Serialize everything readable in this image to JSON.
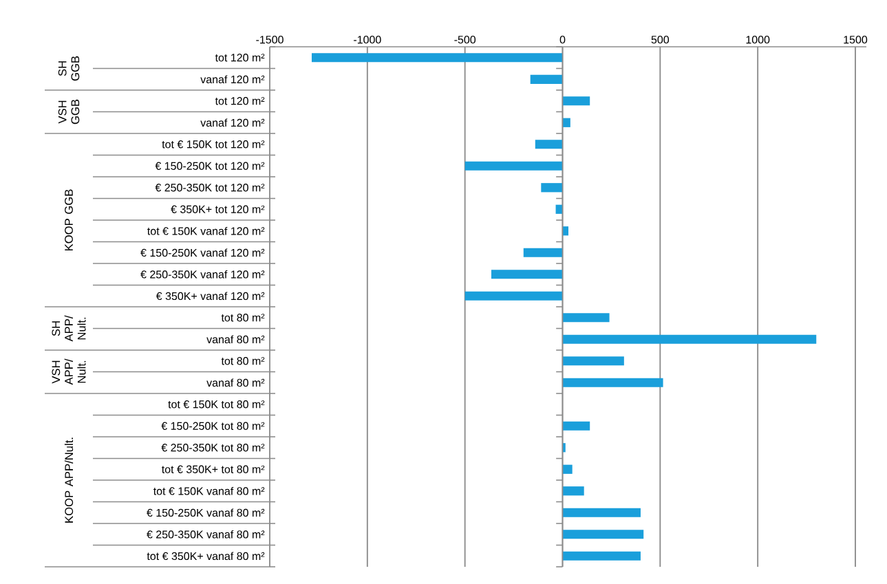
{
  "chart_data": {
    "type": "bar",
    "orientation": "horizontal",
    "categories": [
      "tot 120 m²",
      "vanaf 120 m²",
      "tot 120 m²",
      "vanaf 120 m²",
      "tot € 150K tot 120 m²",
      "€ 150-250K tot 120 m²",
      "€ 250-350K tot 120 m²",
      "€ 350K+ tot 120 m²",
      "tot € 150K vanaf 120 m²",
      "€ 150-250K vanaf 120 m²",
      "€ 250-350K vanaf 120 m²",
      "€ 350K+ vanaf 120 m²",
      "tot 80 m²",
      "vanaf 80 m²",
      "tot 80 m²",
      "vanaf 80 m²",
      "tot € 150K tot 80 m²",
      "€ 150-250K tot 80 m²",
      "€ 250-350K tot 80 m²",
      "tot € 350K+ tot 80 m²",
      "tot € 150K vanaf 80 m²",
      "€ 150-250K vanaf 80 m²",
      "€ 250-350K vanaf 80 m²",
      "tot € 350K+ vanaf 80 m²"
    ],
    "values": [
      -1285,
      -165,
      140,
      40,
      -140,
      -500,
      -110,
      -35,
      30,
      -200,
      -365,
      -500,
      240,
      1300,
      315,
      515,
      null,
      140,
      15,
      50,
      110,
      400,
      415,
      400
    ],
    "color": "#1a9fdb",
    "xlim": [
      -1500,
      1500
    ],
    "xticks": [
      -1500,
      -1000,
      -500,
      0,
      500,
      1000,
      1500
    ],
    "grid": "x",
    "annotations": [
      "SH GGB",
      "VSH GGB",
      "KOOP GGB",
      "SH APP/ Nult.",
      "VSH APP/ Nult.",
      "KOOP APP/Nult."
    ]
  }
}
